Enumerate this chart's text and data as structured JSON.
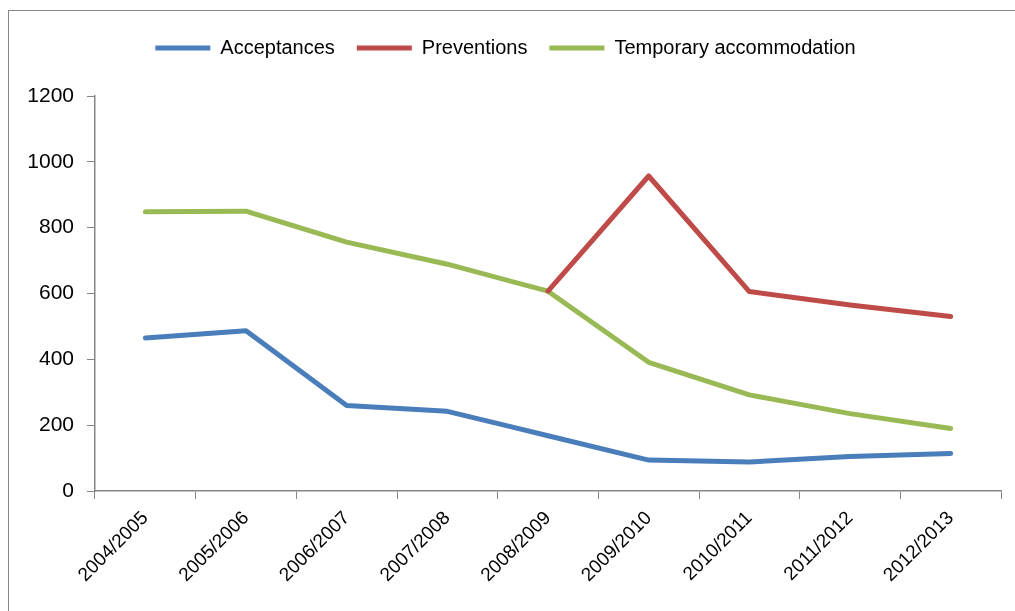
{
  "chart_data": {
    "type": "line",
    "categories": [
      "2004/2005",
      "2005/2006",
      "2006/2007",
      "2007/2008",
      "2008/2009",
      "2009/2010",
      "2010/2011",
      "2011/2012",
      "2012/2013"
    ],
    "series": [
      {
        "name": "Acceptances",
        "color": "#4a7ebb",
        "values": [
          465,
          487,
          260,
          242,
          168,
          94,
          88,
          105,
          114
        ]
      },
      {
        "name": "Preventions",
        "color": "#be4b48",
        "values": [
          null,
          null,
          null,
          null,
          607,
          957,
          606,
          565,
          530
        ]
      },
      {
        "name": "Temporary accommodation",
        "color": "#98b954",
        "values": [
          848,
          850,
          756,
          689,
          607,
          391,
          292,
          235,
          190
        ]
      }
    ],
    "ylim": [
      0,
      1200
    ],
    "yticks": [
      0,
      200,
      400,
      600,
      800,
      1000,
      1200
    ],
    "grid": false,
    "legend": "top",
    "marker": "none",
    "line_style": "solid"
  }
}
